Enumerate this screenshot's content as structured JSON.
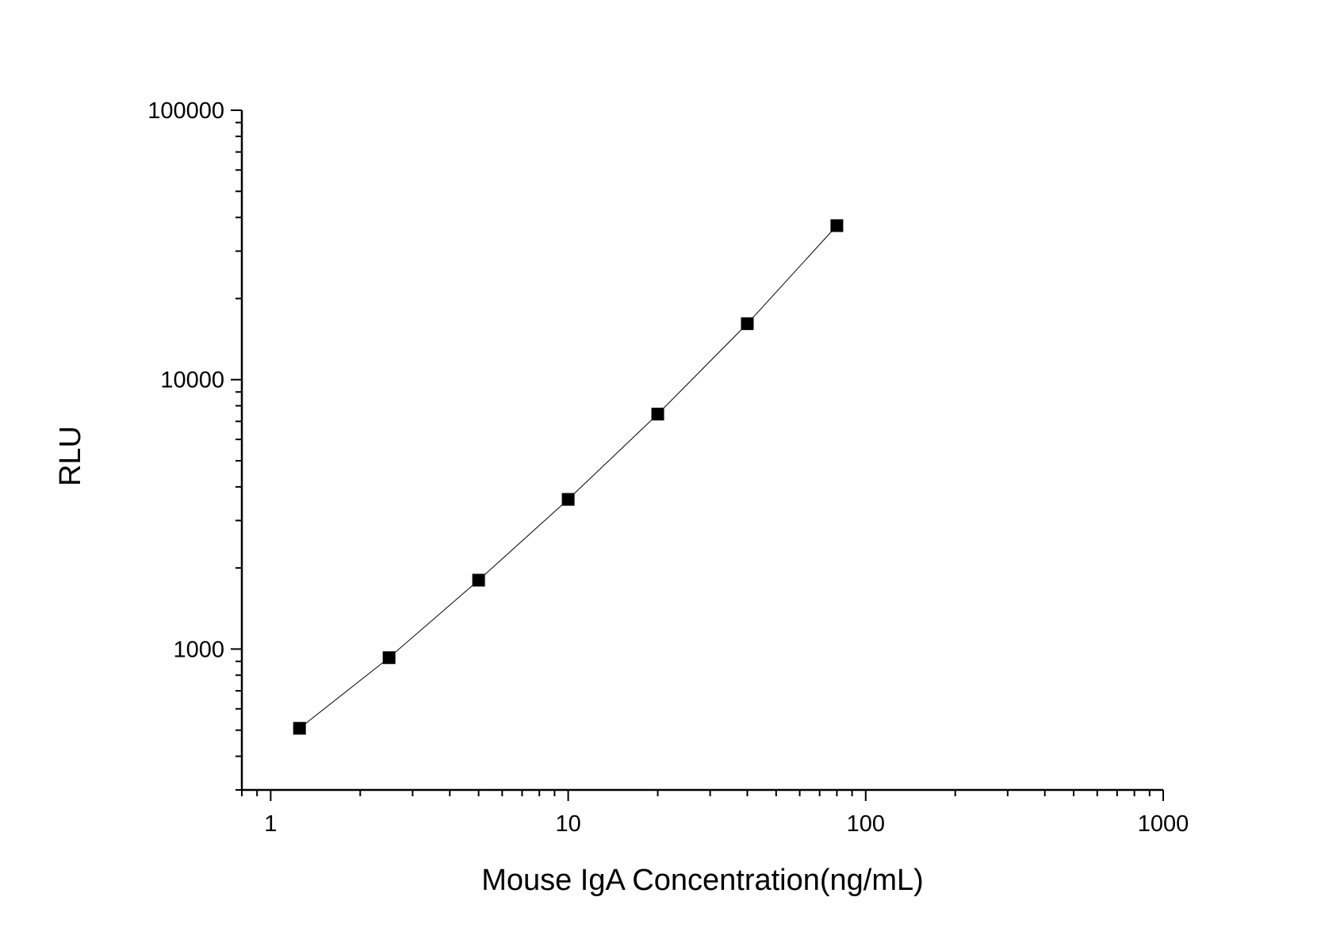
{
  "chart_data": {
    "type": "line",
    "title": "",
    "xlabel": "Mouse IgA Concentration(ng/mL)",
    "ylabel": "RLU",
    "xscale": "log",
    "yscale": "log",
    "xlim": [
      0.8,
      1000
    ],
    "ylim": [
      300,
      100000
    ],
    "x_ticks": [
      1,
      10,
      100,
      1000
    ],
    "x_tick_labels": [
      "1",
      "10",
      "100",
      "1000"
    ],
    "y_ticks": [
      1000,
      10000,
      100000
    ],
    "y_tick_labels": [
      "1000",
      "10000",
      "100000"
    ],
    "grid": false,
    "legend": "none",
    "marker": "square",
    "color": "#000000",
    "series": [
      {
        "x": [
          1.25,
          2.5,
          5,
          10,
          20,
          40,
          80
        ],
        "y": [
          508,
          929,
          1802,
          3594,
          7450,
          16130,
          37300
        ]
      }
    ]
  }
}
